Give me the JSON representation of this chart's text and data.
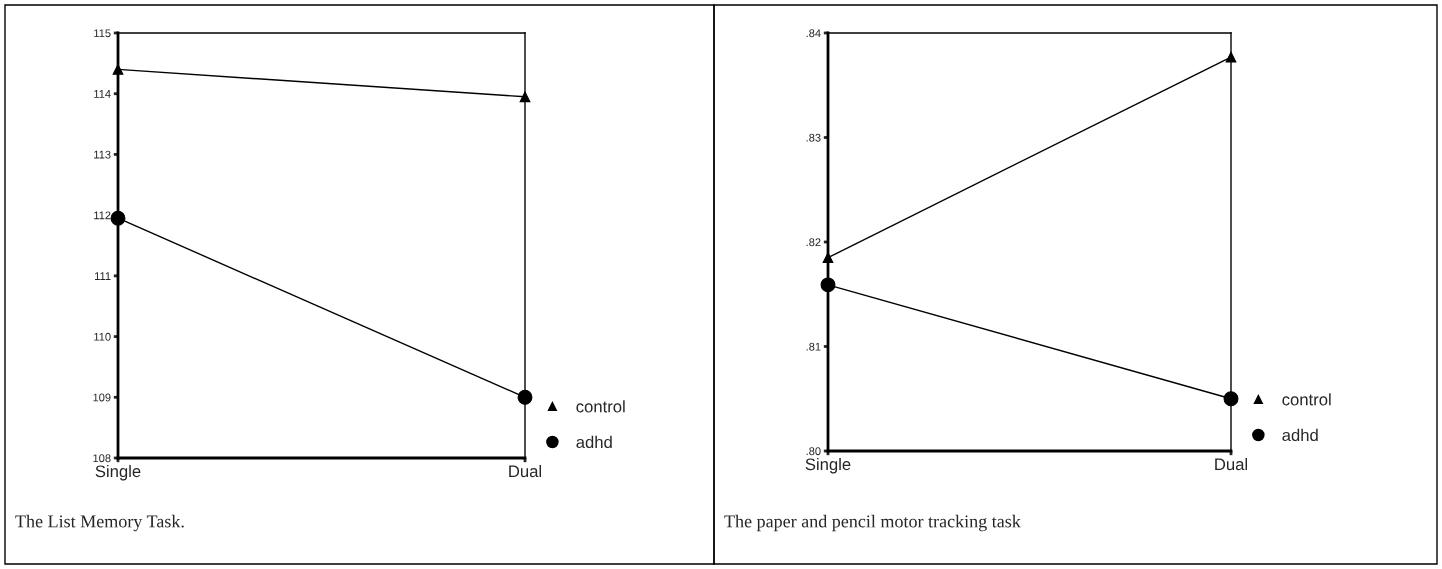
{
  "chart_data": [
    {
      "type": "line",
      "categories": [
        "Single",
        "Dual"
      ],
      "series": [
        {
          "name": "control",
          "color": "#000000",
          "marker": "triangle",
          "values": [
            114.4,
            113.95
          ]
        },
        {
          "name": "adhd",
          "color": "#000000",
          "marker": "circle",
          "values": [
            111.95,
            109.0
          ]
        }
      ],
      "ylim": [
        108,
        115
      ],
      "yticks": [
        108,
        109,
        110,
        111,
        112,
        113,
        114,
        115
      ],
      "legend": "bottom right",
      "line_style": "solid",
      "annotations": [
        "The List Memory Task."
      ]
    },
    {
      "type": "line",
      "categories": [
        "Single",
        "Dual"
      ],
      "series": [
        {
          "name": "control",
          "color": "#000000",
          "marker": "triangle",
          "values": [
            0.8185,
            0.8377
          ]
        },
        {
          "name": "adhd",
          "color": "#000000",
          "marker": "circle",
          "values": [
            0.8159,
            0.805
          ]
        }
      ],
      "ylim": [
        0.8,
        0.84
      ],
      "yticks": [
        {
          "value": 0.8,
          "label": ".80"
        },
        {
          "value": 0.81,
          "label": ".81"
        },
        {
          "value": 0.82,
          "label": ".82"
        },
        {
          "value": 0.83,
          "label": ".83"
        },
        {
          "value": 0.84,
          "label": ".84"
        }
      ],
      "legend": "bottom right",
      "line_style": "solid",
      "annotations": [
        "The paper and pencil motor tracking task"
      ]
    }
  ]
}
